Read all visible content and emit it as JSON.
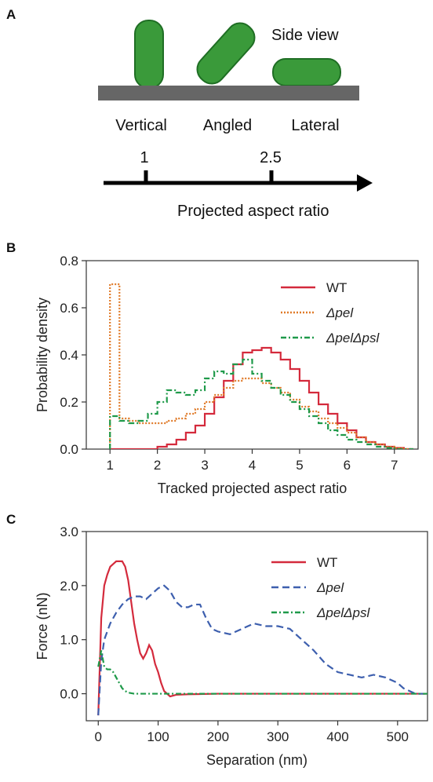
{
  "panels": {
    "a": {
      "letter": "A",
      "side_view_label": "Side view",
      "orientations": [
        "Vertical",
        "Angled",
        "Lateral"
      ],
      "scale_marks": [
        "1",
        "2.5"
      ],
      "axis_label": "Projected aspect ratio",
      "colors": {
        "cell_fill": "#3a9a3a",
        "cell_stroke": "#1f6e24",
        "surface": "#666666"
      }
    },
    "b": {
      "letter": "B"
    },
    "c": {
      "letter": "C"
    }
  },
  "chart_data": [
    {
      "type": "line",
      "style": "step",
      "xlabel": "Tracked projected aspect ratio",
      "ylabel": "Probability density",
      "xlim": [
        0.5,
        7.5
      ],
      "ylim": [
        0,
        0.8
      ],
      "xticks": [
        "1",
        "2",
        "3",
        "4",
        "5",
        "6",
        "7"
      ],
      "yticks": [
        "0.0",
        "0.2",
        "0.4",
        "0.6",
        "0.8"
      ],
      "legend_position": "top-right",
      "x": [
        1.0,
        1.2,
        1.4,
        1.6,
        1.8,
        2.0,
        2.2,
        2.4,
        2.6,
        2.8,
        3.0,
        3.2,
        3.4,
        3.6,
        3.8,
        4.0,
        4.2,
        4.4,
        4.6,
        4.8,
        5.0,
        5.2,
        5.4,
        5.6,
        5.8,
        6.0,
        6.2,
        6.4,
        6.6,
        6.8,
        7.0,
        7.2
      ],
      "series": [
        {
          "name": "WT",
          "color": "#d42a3c",
          "dash": "solid",
          "values": [
            0.0,
            0.0,
            0.0,
            0.0,
            0.0,
            0.01,
            0.02,
            0.04,
            0.07,
            0.1,
            0.15,
            0.22,
            0.29,
            0.36,
            0.41,
            0.42,
            0.43,
            0.41,
            0.38,
            0.34,
            0.29,
            0.24,
            0.19,
            0.15,
            0.11,
            0.08,
            0.05,
            0.03,
            0.02,
            0.01,
            0.005,
            0.0
          ]
        },
        {
          "name": "Δpel",
          "color": "#e07a28",
          "dash": "dotted",
          "values": [
            0.7,
            0.13,
            0.12,
            0.11,
            0.11,
            0.11,
            0.12,
            0.13,
            0.15,
            0.17,
            0.2,
            0.23,
            0.26,
            0.29,
            0.3,
            0.3,
            0.28,
            0.26,
            0.24,
            0.21,
            0.18,
            0.16,
            0.13,
            0.11,
            0.09,
            0.07,
            0.05,
            0.03,
            0.02,
            0.01,
            0.005,
            0.0
          ]
        },
        {
          "name": "ΔpelΔpsl",
          "color": "#1f9a4a",
          "dash": "dashdot",
          "values": [
            0.14,
            0.12,
            0.11,
            0.12,
            0.15,
            0.2,
            0.25,
            0.24,
            0.23,
            0.25,
            0.3,
            0.33,
            0.32,
            0.36,
            0.38,
            0.32,
            0.29,
            0.26,
            0.23,
            0.2,
            0.17,
            0.14,
            0.11,
            0.08,
            0.06,
            0.04,
            0.03,
            0.02,
            0.01,
            0.005,
            0.0,
            0.0
          ]
        }
      ]
    },
    {
      "type": "line",
      "xlabel": "Separation (nm)",
      "ylabel": "Force (nN)",
      "xlim": [
        -20,
        550
      ],
      "ylim": [
        -0.5,
        3.0
      ],
      "xticks": [
        "0",
        "100",
        "200",
        "300",
        "400",
        "500"
      ],
      "yticks": [
        "0.0",
        "1.0",
        "2.0",
        "3.0"
      ],
      "legend_position": "top-right",
      "series": [
        {
          "name": "WT",
          "color": "#d42a3c",
          "dash": "solid",
          "x": [
            0,
            5,
            10,
            15,
            20,
            25,
            30,
            35,
            40,
            45,
            50,
            55,
            60,
            65,
            70,
            75,
            80,
            85,
            90,
            95,
            100,
            105,
            110,
            115,
            120,
            130,
            150,
            200,
            300,
            400,
            500,
            550
          ],
          "y": [
            -0.4,
            1.4,
            2.0,
            2.2,
            2.35,
            2.4,
            2.45,
            2.45,
            2.45,
            2.35,
            2.1,
            1.7,
            1.3,
            1.0,
            0.75,
            0.65,
            0.75,
            0.9,
            0.8,
            0.55,
            0.4,
            0.2,
            0.05,
            0.0,
            -0.05,
            -0.02,
            -0.01,
            0.0,
            0.0,
            0.0,
            0.0,
            0.0
          ]
        },
        {
          "name": "Δpel",
          "color": "#3d5fae",
          "dash": "dashed",
          "x": [
            0,
            5,
            10,
            20,
            30,
            40,
            50,
            60,
            70,
            80,
            90,
            100,
            110,
            120,
            130,
            140,
            150,
            160,
            170,
            180,
            190,
            200,
            220,
            240,
            260,
            280,
            300,
            320,
            340,
            360,
            380,
            400,
            420,
            440,
            460,
            480,
            500,
            510,
            520,
            530,
            540,
            550
          ],
          "y": [
            -0.4,
            0.6,
            1.0,
            1.3,
            1.5,
            1.65,
            1.75,
            1.8,
            1.8,
            1.75,
            1.85,
            1.95,
            2.0,
            1.9,
            1.7,
            1.6,
            1.6,
            1.65,
            1.65,
            1.4,
            1.2,
            1.15,
            1.1,
            1.2,
            1.3,
            1.25,
            1.25,
            1.2,
            1.0,
            0.8,
            0.55,
            0.4,
            0.35,
            0.3,
            0.35,
            0.3,
            0.2,
            0.1,
            0.05,
            0.0,
            0.0,
            0.0
          ]
        },
        {
          "name": "ΔpelΔpsl",
          "color": "#1f9a4a",
          "dash": "dashdot",
          "x": [
            0,
            5,
            10,
            15,
            20,
            25,
            30,
            35,
            40,
            45,
            50,
            60,
            70,
            80,
            100,
            200,
            300,
            400,
            500,
            550
          ],
          "y": [
            0.5,
            0.8,
            0.5,
            0.45,
            0.45,
            0.4,
            0.3,
            0.2,
            0.1,
            0.05,
            0.02,
            0.0,
            0.0,
            0.0,
            0.0,
            0.0,
            0.0,
            0.0,
            0.0,
            0.0
          ]
        }
      ]
    }
  ]
}
